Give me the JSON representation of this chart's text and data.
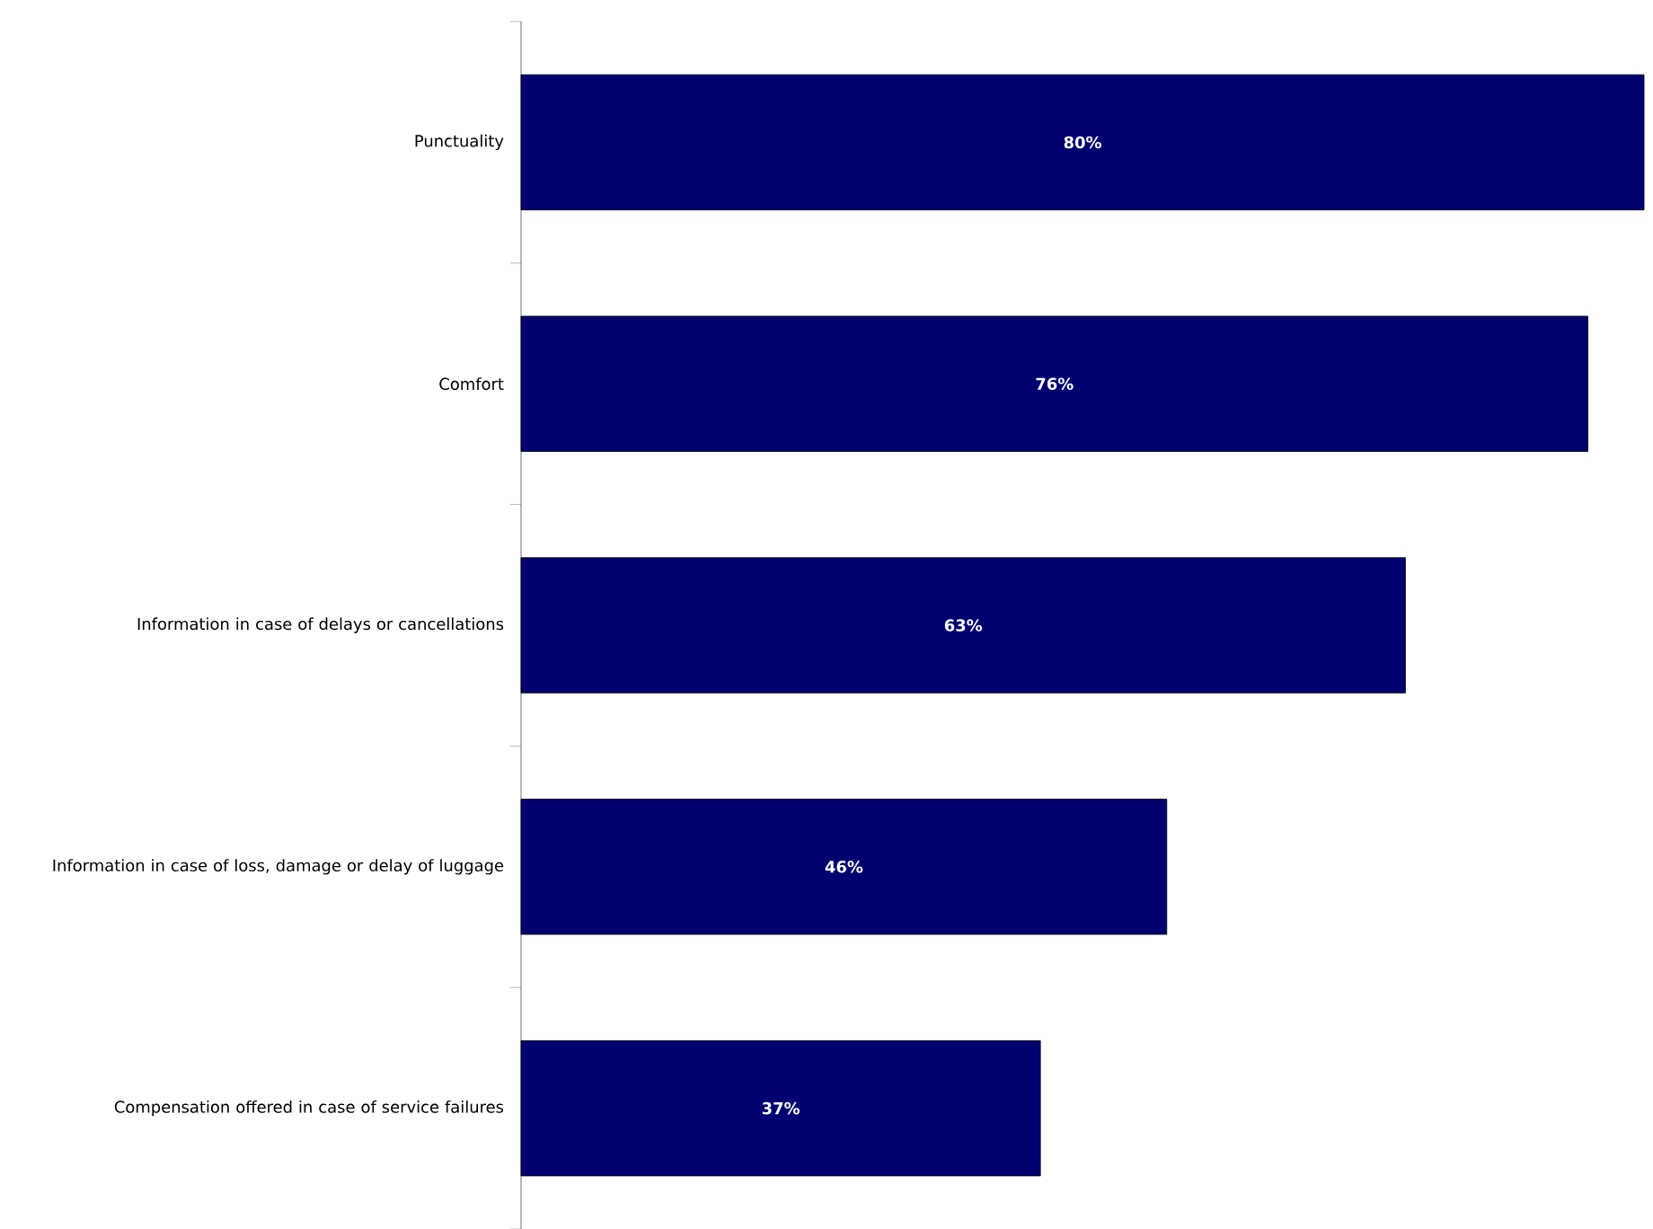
{
  "chart_data": {
    "type": "bar",
    "orientation": "horizontal",
    "categories": [
      "Punctuality",
      "Comfort",
      "Information in case of delays or cancellations",
      "Information in case of loss, damage or delay of luggage",
      "Compensation offered in case of service failures"
    ],
    "values": [
      80,
      76,
      63,
      46,
      37
    ],
    "value_labels": [
      "80%",
      "76%",
      "63%",
      "46%",
      "37%"
    ],
    "color": "#000070"
  }
}
